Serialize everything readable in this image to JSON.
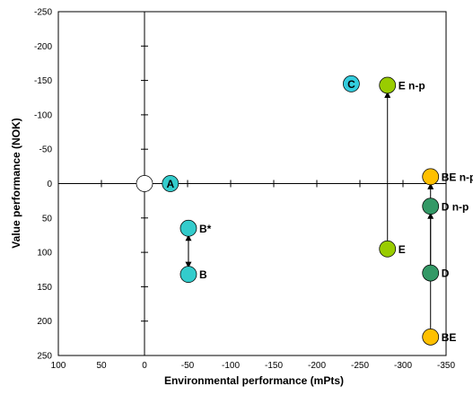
{
  "chart_data": {
    "type": "scatter",
    "title": "",
    "xlabel": "Environmental performance (mPts)",
    "ylabel": "Value performance (NOK)",
    "xlim": [
      100,
      -350
    ],
    "ylim": [
      250,
      -250
    ],
    "x_ticks": [
      "100",
      "50",
      "0",
      "-50",
      "-100",
      "-150",
      "-200",
      "-250",
      "-300",
      "-350"
    ],
    "y_ticks": [
      "-250",
      "-200",
      "-150",
      "-100",
      "-50",
      "0",
      "50",
      "100",
      "150",
      "200",
      "250"
    ],
    "grid": false,
    "points": [
      {
        "label": "",
        "x": 0,
        "y": 0,
        "color": "#ffffff",
        "label_pos": "none"
      },
      {
        "label": "A",
        "x": -30,
        "y": 0,
        "color": "#33cccc",
        "label_pos": "inside"
      },
      {
        "label": "C",
        "x": -240,
        "y": -145,
        "color": "#33ccdd",
        "label_pos": "inside"
      },
      {
        "label": "E n-p",
        "x": -282,
        "y": -143,
        "color": "#99cc00",
        "label_pos": "right"
      },
      {
        "label": "E",
        "x": -282,
        "y": 95,
        "color": "#99cc00",
        "label_pos": "right"
      },
      {
        "label": "B*",
        "x": -51,
        "y": 65,
        "color": "#33cccc",
        "label_pos": "right"
      },
      {
        "label": "B",
        "x": -51,
        "y": 132,
        "color": "#33cccc",
        "label_pos": "right"
      },
      {
        "label": "BE n-p",
        "x": -332,
        "y": -10,
        "color": "#ffc000",
        "label_pos": "right"
      },
      {
        "label": "D n-p",
        "x": -332,
        "y": 33,
        "color": "#339966",
        "label_pos": "right"
      },
      {
        "label": "D",
        "x": -332,
        "y": 130,
        "color": "#339966",
        "label_pos": "right"
      },
      {
        "label": "BE",
        "x": -332,
        "y": 223,
        "color": "#ffc000",
        "label_pos": "right"
      }
    ],
    "arrows": [
      {
        "from": [
          -282,
          95
        ],
        "to": [
          -282,
          -143
        ]
      },
      {
        "from": [
          -51,
          132
        ],
        "to": [
          -51,
          65
        ]
      },
      {
        "from": [
          -51,
          65
        ],
        "to": [
          -51,
          132
        ]
      },
      {
        "from": [
          -332,
          223
        ],
        "to": [
          -332,
          -10
        ]
      },
      {
        "from": [
          -332,
          130
        ],
        "to": [
          -332,
          33
        ]
      }
    ]
  }
}
